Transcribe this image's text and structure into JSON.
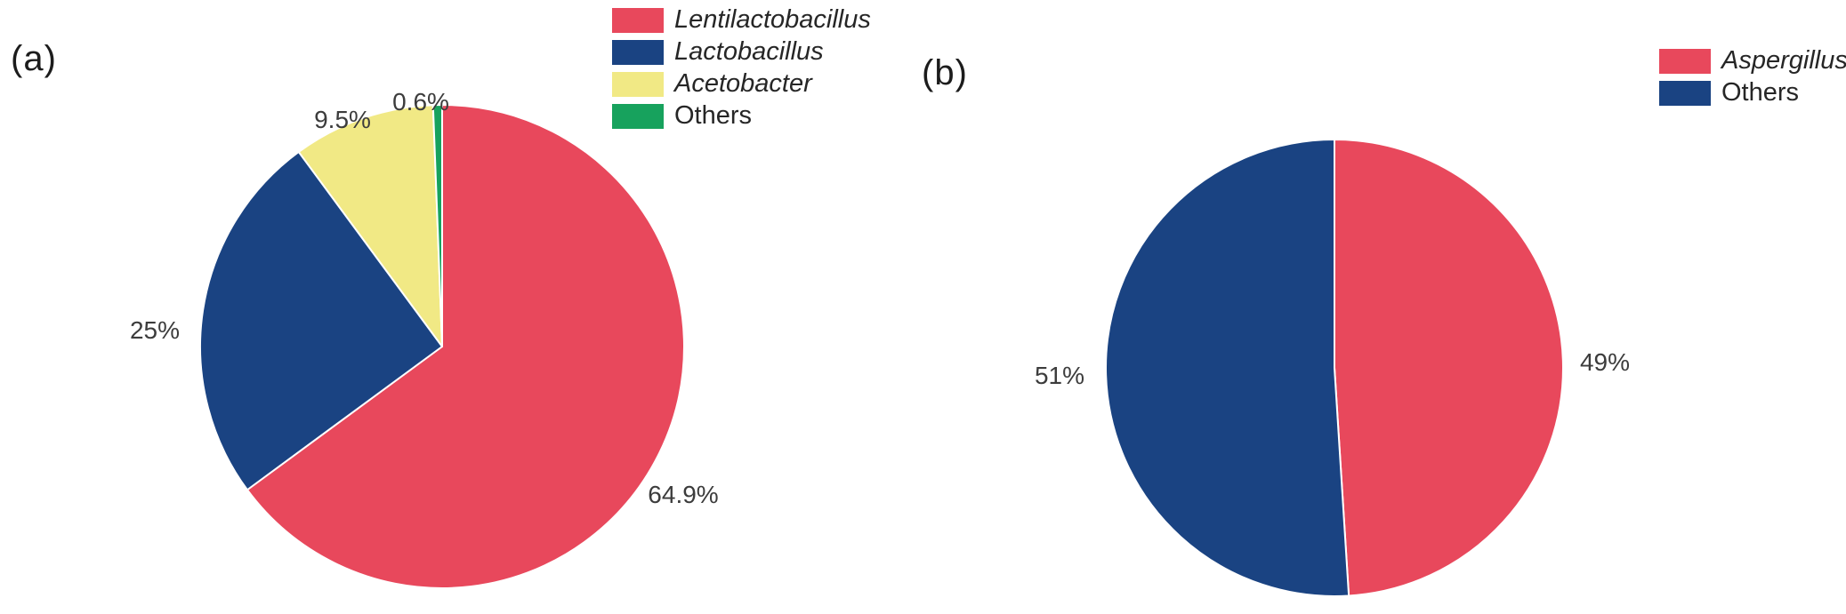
{
  "figure": {
    "panel_a_tag": "(a)",
    "panel_b_tag": "(b)"
  },
  "chart_data": [
    {
      "type": "pie",
      "panel": "(a)",
      "categories": [
        "Lentilactobacillus",
        "Lactobacillus",
        "Acetobacter",
        "Others"
      ],
      "values": [
        64.9,
        25,
        9.5,
        0.6
      ],
      "labels": [
        "64.9%",
        "25%",
        "9.5%",
        "0.6%"
      ],
      "colors": [
        "#e8485c",
        "#1a4382",
        "#f1e985",
        "#17a25d"
      ],
      "legend_entries": [
        "Lentilactobacillus",
        "Lactobacillus",
        "Acetobacter",
        "Others"
      ],
      "legend_italic": [
        true,
        true,
        true,
        false
      ],
      "legend_position": "top-center",
      "start_angle_deg_from_top": 0,
      "direction": "clockwise",
      "slice_border_color": "#ffffff"
    },
    {
      "type": "pie",
      "panel": "(b)",
      "categories": [
        "Aspergillus",
        "Others"
      ],
      "values": [
        49,
        51
      ],
      "labels": [
        "49%",
        "51%"
      ],
      "colors": [
        "#e8485c",
        "#1a4382"
      ],
      "legend_entries": [
        "Aspergillus",
        "Others"
      ],
      "legend_italic": [
        true,
        false
      ],
      "legend_position": "top-right",
      "start_angle_deg_from_top": 0,
      "direction": "clockwise",
      "slice_border_color": "#ffffff"
    }
  ]
}
